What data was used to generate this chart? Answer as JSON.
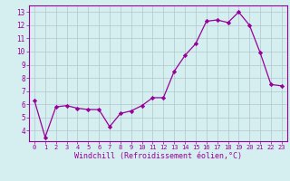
{
  "x": [
    0,
    1,
    2,
    3,
    4,
    5,
    6,
    7,
    8,
    9,
    10,
    11,
    12,
    13,
    14,
    15,
    16,
    17,
    18,
    19,
    20,
    21,
    22,
    23
  ],
  "y": [
    6.3,
    3.5,
    5.8,
    5.9,
    5.7,
    5.6,
    5.6,
    4.3,
    5.3,
    5.5,
    5.9,
    6.5,
    6.5,
    8.5,
    9.7,
    10.6,
    12.3,
    12.4,
    12.2,
    13.0,
    12.0,
    9.9,
    7.5,
    7.4
  ],
  "line_color": "#990099",
  "marker": "D",
  "marker_size": 2.2,
  "bg_color": "#d5eef0",
  "grid_color": "#b0c8cc",
  "xlabel": "Windchill (Refroidissement éolien,°C)",
  "xlabel_color": "#990099",
  "ylabel_ticks": [
    4,
    5,
    6,
    7,
    8,
    9,
    10,
    11,
    12,
    13
  ],
  "xtick_labels": [
    "0",
    "1",
    "2",
    "3",
    "4",
    "5",
    "6",
    "7",
    "8",
    "9",
    "10",
    "11",
    "12",
    "13",
    "14",
    "15",
    "16",
    "17",
    "18",
    "19",
    "20",
    "21",
    "22",
    "23"
  ],
  "ylim": [
    3.2,
    13.5
  ],
  "xlim": [
    -0.5,
    23.5
  ],
  "tick_color": "#990099",
  "axis_color": "#990099",
  "tick_fontsize": 5.0,
  "xlabel_fontsize": 6.0
}
